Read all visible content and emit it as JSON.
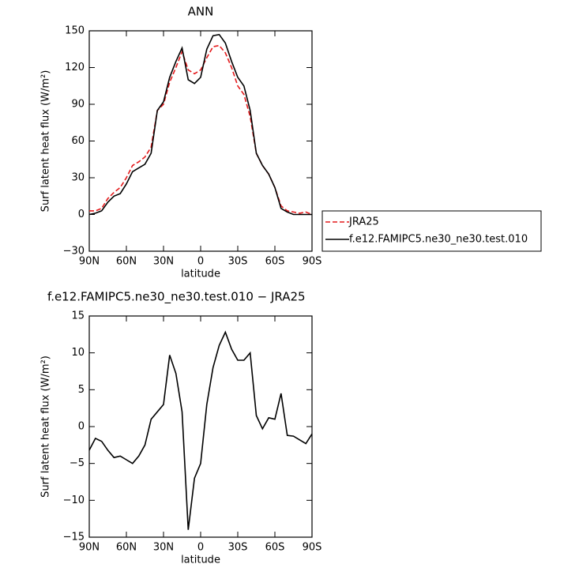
{
  "chart_data": [
    {
      "type": "line",
      "title": "ANN",
      "x": [
        90,
        85,
        80,
        75,
        70,
        65,
        60,
        55,
        50,
        45,
        40,
        35,
        30,
        25,
        20,
        15,
        10,
        5,
        0,
        -5,
        -10,
        -15,
        -20,
        -25,
        -30,
        -35,
        -40,
        -45,
        -50,
        -55,
        -60,
        -65,
        -70,
        -75,
        -80,
        -85,
        -90
      ],
      "series": [
        {
          "name": "JRA25",
          "color": "#e41a1c",
          "style": "dashed",
          "values": [
            3,
            3,
            5,
            13,
            18,
            22,
            30,
            40,
            43,
            47,
            55,
            85,
            90,
            108,
            120,
            133,
            118,
            115,
            118,
            128,
            137,
            138,
            132,
            120,
            105,
            98,
            80,
            50,
            40,
            33,
            22,
            7,
            3,
            2,
            1,
            2,
            0
          ]
        },
        {
          "name": "f.e12.FAMIPC5.ne30_ne30.test.010",
          "color": "#000000",
          "style": "solid",
          "values": [
            0,
            1,
            3,
            10,
            15,
            17,
            25,
            35,
            38,
            41,
            50,
            85,
            92,
            112,
            125,
            136,
            110,
            107,
            112,
            135,
            146,
            147,
            140,
            125,
            112,
            105,
            85,
            50,
            40,
            33,
            22,
            5,
            2,
            0,
            0,
            0,
            0
          ]
        }
      ],
      "xlim": [
        90,
        -90
      ],
      "xticks": [
        {
          "value": 90,
          "label": "90N"
        },
        {
          "value": 60,
          "label": "60N"
        },
        {
          "value": 30,
          "label": "30N"
        },
        0,
        {
          "value": -30,
          "label": "30S"
        },
        {
          "value": -60,
          "label": "60S"
        },
        {
          "value": -90,
          "label": "90S"
        }
      ],
      "ylim": [
        -30,
        150
      ],
      "yticks": [
        {
          "value": -30,
          "label": "−30"
        },
        0,
        30,
        60,
        90,
        120,
        150
      ],
      "xlabel": "latitude",
      "ylabel": "Surf latent heat flux (W/m²)",
      "legend": "right"
    },
    {
      "type": "line",
      "title": "f.e12.FAMIPC5.ne30_ne30.test.010 − JRA25",
      "x": [
        90,
        85,
        80,
        75,
        70,
        65,
        60,
        55,
        50,
        45,
        40,
        35,
        30,
        25,
        20,
        15,
        10,
        5,
        0,
        -5,
        -10,
        -15,
        -20,
        -25,
        -30,
        -35,
        -40,
        -45,
        -50,
        -55,
        -60,
        -65,
        -70,
        -75,
        -80,
        -85,
        -90
      ],
      "series": [
        {
          "color": "#000000",
          "style": "solid",
          "values": [
            -3.2,
            -1.6,
            -2.0,
            -3.2,
            -4.2,
            -4.0,
            -4.5,
            -5.0,
            -4.0,
            -2.5,
            1.0,
            2.0,
            3.0,
            9.7,
            7.2,
            2.0,
            -14,
            -7,
            -5,
            3,
            8,
            11,
            12.8,
            10.5,
            9,
            9,
            10,
            1.5,
            -0.3,
            1.2,
            1.0,
            4.5,
            -1.2,
            -1.3,
            -1.8,
            -2.3,
            -1.0
          ]
        }
      ],
      "xlim": [
        90,
        -90
      ],
      "xticks": [
        {
          "value": 90,
          "label": "90N"
        },
        {
          "value": 60,
          "label": "60N"
        },
        {
          "value": 30,
          "label": "30N"
        },
        0,
        {
          "value": -30,
          "label": "30S"
        },
        {
          "value": -60,
          "label": "60S"
        },
        {
          "value": -90,
          "label": "90S"
        }
      ],
      "ylim": [
        -15,
        15
      ],
      "yticks": [
        {
          "value": -15,
          "label": "−15"
        },
        {
          "value": -10,
          "label": "−10"
        },
        {
          "value": -5,
          "label": "−5"
        },
        0,
        5,
        10,
        15
      ],
      "xlabel": "latitude",
      "ylabel": "Surf latent heat flux (W/m²)"
    }
  ]
}
